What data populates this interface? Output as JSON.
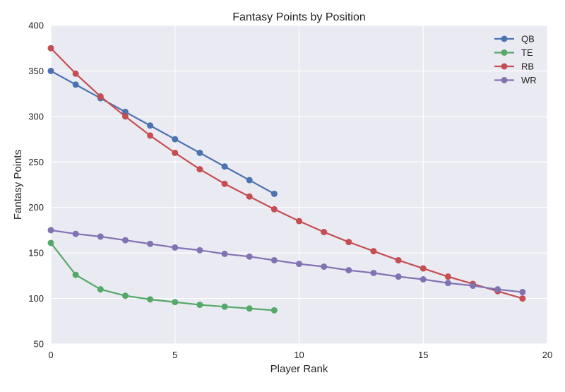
{
  "chart_data": {
    "type": "line",
    "title": "Fantasy Points by Position",
    "xlabel": "Player Rank",
    "ylabel": "Fantasy Points",
    "xlim": [
      0,
      20
    ],
    "ylim": [
      50,
      400
    ],
    "xticks": [
      0,
      5,
      10,
      15,
      20
    ],
    "yticks": [
      50,
      100,
      150,
      200,
      250,
      300,
      350,
      400
    ],
    "grid": true,
    "legend_position": "top-right",
    "series": [
      {
        "name": "QB",
        "color": "#4c72b0",
        "x": [
          0,
          1,
          2,
          3,
          4,
          5,
          6,
          7,
          8,
          9
        ],
        "values": [
          350,
          335,
          320,
          305,
          290,
          275,
          260,
          245,
          230,
          215
        ]
      },
      {
        "name": "TE",
        "color": "#55a868",
        "x": [
          0,
          1,
          2,
          3,
          4,
          5,
          6,
          7,
          8,
          9
        ],
        "values": [
          161,
          126,
          110,
          103,
          99,
          96,
          93,
          91,
          89,
          87
        ]
      },
      {
        "name": "RB",
        "color": "#c44e52",
        "x": [
          0,
          1,
          2,
          3,
          4,
          5,
          6,
          7,
          8,
          9,
          10,
          11,
          12,
          13,
          14,
          15,
          16,
          17,
          18,
          19
        ],
        "values": [
          375,
          347,
          322,
          300,
          279,
          260,
          242,
          226,
          212,
          198,
          185,
          173,
          162,
          152,
          142,
          133,
          124,
          116,
          108,
          100
        ]
      },
      {
        "name": "WR",
        "color": "#8172b2",
        "x": [
          0,
          1,
          2,
          3,
          4,
          5,
          6,
          7,
          8,
          9,
          10,
          11,
          12,
          13,
          14,
          15,
          16,
          17,
          18,
          19
        ],
        "values": [
          175,
          171,
          168,
          164,
          160,
          156,
          153,
          149,
          146,
          142,
          138,
          135,
          131,
          128,
          124,
          121,
          117,
          114,
          110,
          107
        ]
      }
    ]
  }
}
